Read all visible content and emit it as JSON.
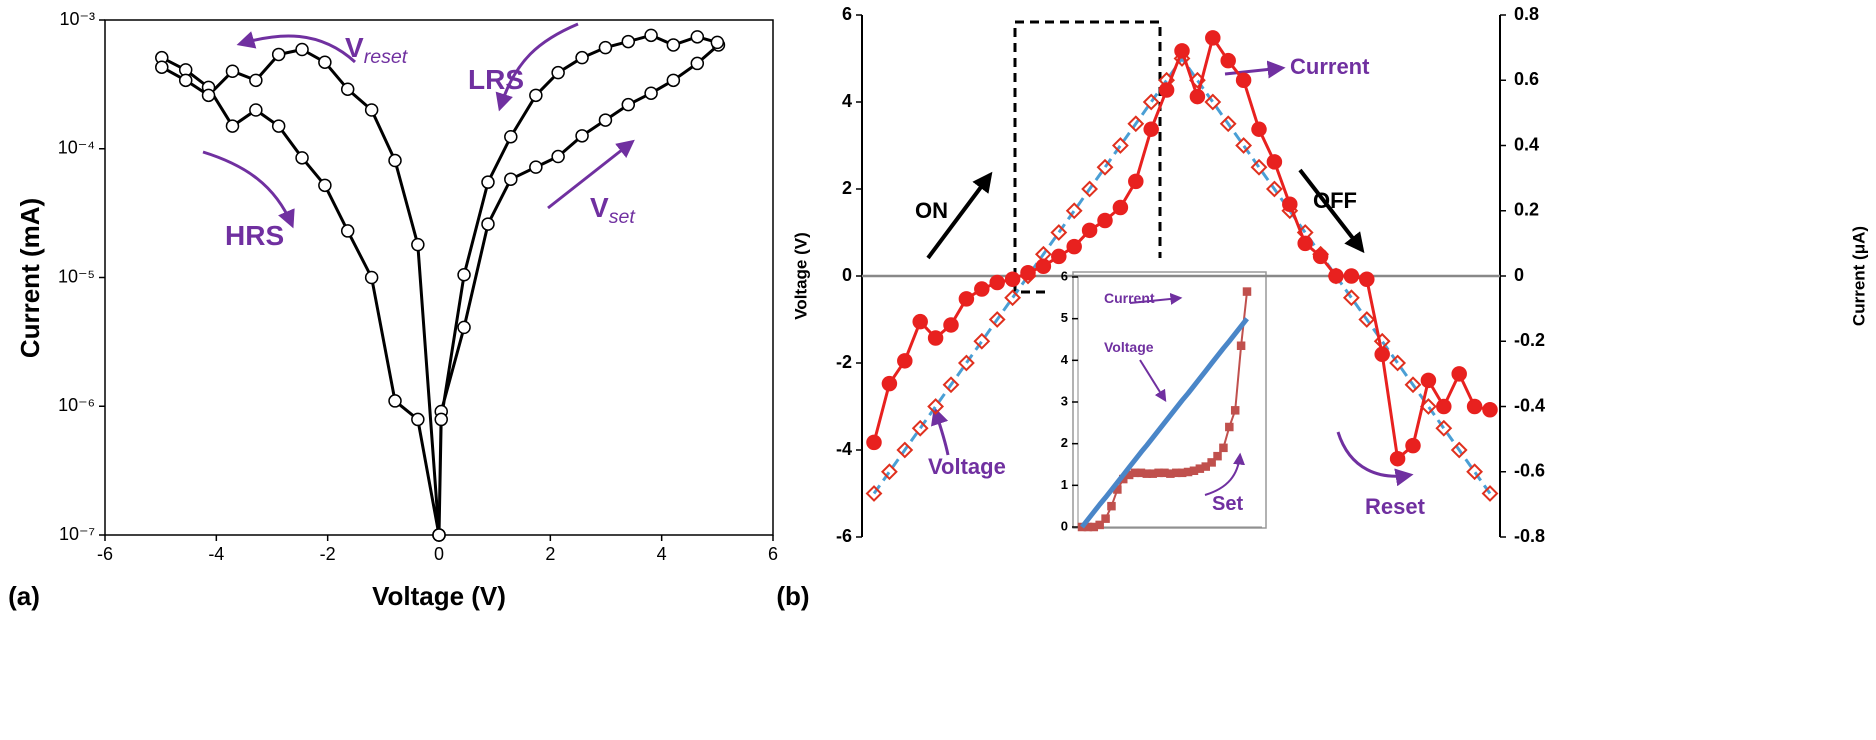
{
  "chart_data": [
    {
      "type": "line",
      "panel_label": "(a)",
      "xlabel": "Voltage (V)",
      "ylabel": "Current (mA)",
      "ylog": true,
      "xlim": [
        -6,
        6
      ],
      "xticks": [
        -6,
        -4,
        -2,
        0,
        2,
        4,
        6
      ],
      "ylim": [
        1e-07,
        0.001
      ],
      "yticks": [
        {
          "value": 0.001,
          "label": "10⁻³"
        },
        {
          "value": 0.0001,
          "label": "10⁻⁴"
        },
        {
          "value": 1e-05,
          "label": "10⁻⁵"
        },
        {
          "value": 1e-06,
          "label": "10⁻⁶"
        },
        {
          "value": 1e-07,
          "label": "10⁻⁷"
        }
      ],
      "series": [
        {
          "color": "#000000",
          "marker": "circle",
          "marker_fill": "#ffffff",
          "x": [
            0,
            0.04,
            0.45,
            0.88,
            1.29,
            1.74,
            2.14,
            2.57,
            2.99,
            3.4,
            3.81,
            4.21,
            4.64,
            5.02,
            5.0,
            4.64,
            4.21,
            3.81,
            3.4,
            2.99,
            2.57,
            2.14,
            1.74,
            1.29,
            0.88,
            0.45,
            0.04,
            0
          ],
          "values": [
            1e-07,
            9.1e-07,
            4.1e-06,
            2.6e-05,
            5.8e-05,
            7.2e-05,
            8.7e-05,
            0.000126,
            0.000167,
            0.00022,
            0.00027,
            0.00034,
            0.00046,
            0.00064,
            0.00067,
            0.00074,
            0.00064,
            0.00076,
            0.00068,
            0.00061,
            0.00051,
            0.00039,
            0.00026,
            0.000124,
            5.5e-05,
            1.05e-05,
            7.9e-07,
            1e-07
          ]
        },
        {
          "color": "#000000",
          "marker": "circle",
          "marker_fill": "#ffffff",
          "x": [
            0,
            -0.38,
            -0.79,
            -1.21,
            -1.64,
            -2.05,
            -2.46,
            -2.88,
            -3.29,
            -3.71,
            -4.14,
            -4.55,
            -4.98,
            -4.98,
            -4.55,
            -4.14,
            -3.71,
            -3.29,
            -2.88,
            -2.46,
            -2.05,
            -1.64,
            -1.21,
            -0.79,
            -0.38,
            0
          ],
          "values": [
            1e-07,
            7.9e-07,
            1.1e-06,
            1e-05,
            2.3e-05,
            5.2e-05,
            8.5e-05,
            0.00015,
            0.0002,
            0.00015,
            0.0003,
            0.00041,
            0.00051,
            0.00043,
            0.00034,
            0.00026,
            0.0004,
            0.00034,
            0.00054,
            0.00059,
            0.00047,
            0.00029,
            0.0002,
            8.1e-05,
            1.8e-05,
            1e-07
          ]
        }
      ],
      "annotations": [
        {
          "text": "V",
          "subscript": "reset"
        },
        {
          "text": "LRS"
        },
        {
          "text": "HRS"
        },
        {
          "text": "V",
          "subscript": "set"
        }
      ]
    },
    {
      "type": "line",
      "panel_label": "(b)",
      "ylabel": "Voltage (V)",
      "y2label": "Current (μA)",
      "zero_line": true,
      "ylim": [
        -6,
        6
      ],
      "yticks": [
        -6,
        -4,
        -2,
        0,
        2,
        4,
        6
      ],
      "y2lim": [
        -0.8,
        0.8
      ],
      "y2ticks": [
        -0.8,
        -0.6,
        -0.4,
        -0.2,
        0,
        0.2,
        0.4,
        0.6,
        0.8
      ],
      "series": [
        {
          "color": "#4a9fd5",
          "dash": true,
          "marker": "diamond",
          "marker_color": "#e0301e",
          "marker_fill": "none",
          "values": [
            -5,
            -4.5,
            -4,
            -3.5,
            -3,
            -2.5,
            -2,
            -1.5,
            -1,
            -0.5,
            0,
            0.5,
            1,
            1.5,
            2,
            2.5,
            3,
            3.5,
            4,
            4.5,
            5,
            4.5,
            4,
            3.5,
            3,
            2.5,
            2,
            1.5,
            1,
            0.5,
            0,
            -0.5,
            -1,
            -1.5,
            -2,
            -2.5,
            -3,
            -3.5,
            -4,
            -4.5,
            -5
          ]
        },
        {
          "color": "#e8211f",
          "marker": "circle",
          "marker_fill": "#e8211f",
          "axis": "y2",
          "values": [
            -0.51,
            -0.33,
            -0.26,
            -0.14,
            -0.19,
            -0.15,
            -0.07,
            -0.04,
            -0.02,
            -0.01,
            0.01,
            0.03,
            0.06,
            0.09,
            0.14,
            0.17,
            0.21,
            0.29,
            0.45,
            0.57,
            0.69,
            0.55,
            0.73,
            0.66,
            0.6,
            0.45,
            0.35,
            0.22,
            0.1,
            0.06,
            0.0,
            0.0,
            -0.01,
            -0.24,
            -0.56,
            -0.52,
            -0.32,
            -0.4,
            -0.3,
            -0.4,
            -0.41
          ]
        }
      ],
      "annotations": [
        {
          "text": "Current"
        },
        {
          "text": "ON"
        },
        {
          "text": "OFF"
        },
        {
          "text": "Voltage"
        },
        {
          "text": "Reset"
        }
      ]
    },
    {
      "type": "line",
      "ylim": [
        0,
        6
      ],
      "yticks": [
        0,
        1,
        2,
        3,
        4,
        5,
        6
      ],
      "series": [
        {
          "color": "#c0504d",
          "marker": "square",
          "marker_fill": "#c0504d",
          "values": [
            0,
            0,
            0,
            0.05,
            0.2,
            0.5,
            0.9,
            1.15,
            1.25,
            1.3,
            1.3,
            1.28,
            1.28,
            1.3,
            1.3,
            1.28,
            1.3,
            1.3,
            1.32,
            1.35,
            1.4,
            1.45,
            1.55,
            1.7,
            1.9,
            2.4,
            2.8,
            4.35,
            5.65
          ]
        },
        {
          "color": "#4a86c8",
          "width": 5,
          "values": [
            0,
            0.18,
            0.36,
            0.54,
            0.71,
            0.89,
            1.07,
            1.25,
            1.43,
            1.61,
            1.79,
            1.96,
            2.14,
            2.32,
            2.5,
            2.68,
            2.86,
            3.04,
            3.21,
            3.39,
            3.57,
            3.75,
            3.93,
            4.11,
            4.29,
            4.46,
            4.64,
            4.82,
            5
          ]
        }
      ],
      "annotations": [
        {
          "text": "Current"
        },
        {
          "text": "Voltage"
        },
        {
          "text": "Set"
        }
      ]
    }
  ]
}
